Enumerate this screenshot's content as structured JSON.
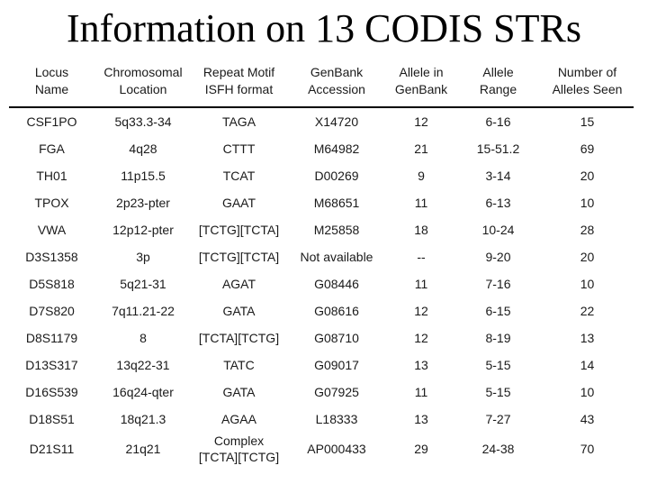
{
  "title": "Information on 13 CODIS STRs",
  "table": {
    "headers": [
      "Locus\nName",
      "Chromosomal\nLocation",
      "Repeat Motif\nISFH format",
      "GenBank\nAccession",
      "Allele in\nGenBank",
      "Allele\nRange",
      "Number of\nAlleles Seen"
    ],
    "rows": [
      [
        "CSF1PO",
        "5q33.3-34",
        "TAGA",
        "X14720",
        "12",
        "6-16",
        "15"
      ],
      [
        "FGA",
        "4q28",
        "CTTT",
        "M64982",
        "21",
        "15-51.2",
        "69"
      ],
      [
        "TH01",
        "11p15.5",
        "TCAT",
        "D00269",
        "9",
        "3-14",
        "20"
      ],
      [
        "TPOX",
        "2p23-pter",
        "GAAT",
        "M68651",
        "11",
        "6-13",
        "10"
      ],
      [
        "VWA",
        "12p12-pter",
        "[TCTG][TCTA]",
        "M25858",
        "18",
        "10-24",
        "28"
      ],
      [
        "D3S1358",
        "3p",
        "[TCTG][TCTA]",
        "Not available",
        "--",
        "9-20",
        "20"
      ],
      [
        "D5S818",
        "5q21-31",
        "AGAT",
        "G08446",
        "11",
        "7-16",
        "10"
      ],
      [
        "D7S820",
        "7q11.21-22",
        "GATA",
        "G08616",
        "12",
        "6-15",
        "22"
      ],
      [
        "D8S1179",
        "8",
        "[TCTA][TCTG]",
        "G08710",
        "12",
        "8-19",
        "13"
      ],
      [
        "D13S317",
        "13q22-31",
        "TATC",
        "G09017",
        "13",
        "5-15",
        "14"
      ],
      [
        "D16S539",
        "16q24-qter",
        "GATA",
        "G07925",
        "11",
        "5-15",
        "10"
      ],
      [
        "D18S51",
        "18q21.3",
        "AGAA",
        "L18333",
        "13",
        "7-27",
        "43"
      ],
      [
        "D21S11",
        "21q21",
        "Complex\n[TCTA][TCTG]",
        "AP000433",
        "29",
        "24-38",
        "70"
      ]
    ]
  }
}
